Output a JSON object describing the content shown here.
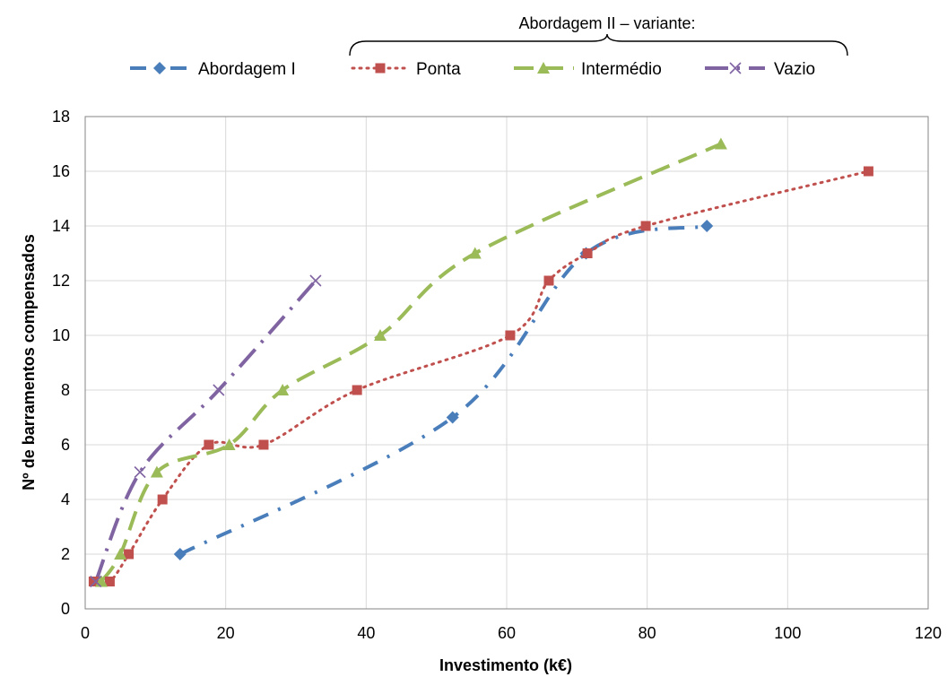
{
  "chart_data": {
    "type": "line",
    "xlabel": "Investimento (k€)",
    "ylabel": "Nº de barramentos  compensados",
    "xlim": [
      0,
      120
    ],
    "ylim": [
      0,
      18
    ],
    "x_ticks": [
      "0",
      "20",
      "40",
      "60",
      "80",
      "100",
      "120"
    ],
    "y_ticks": [
      "0",
      "2",
      "4",
      "6",
      "8",
      "10",
      "12",
      "14",
      "16",
      "18"
    ],
    "grid": true,
    "legend_position": "top",
    "legend_group_title": "Abordagem II – variante:",
    "series": [
      {
        "name": "Abordagem I",
        "color": "#4a7ebb",
        "dash": "dash-dot",
        "marker": "diamond",
        "points": [
          [
            13.5,
            2
          ],
          [
            52.3,
            7
          ],
          [
            71.3,
            13
          ],
          [
            88.5,
            14
          ]
        ]
      },
      {
        "name": "Ponta",
        "color": "#c0504d",
        "dash": "dot",
        "marker": "square",
        "points": [
          [
            1.2,
            1
          ],
          [
            3.5,
            1
          ],
          [
            6.2,
            2
          ],
          [
            11,
            4
          ],
          [
            17.6,
            6
          ],
          [
            25.4,
            6
          ],
          [
            38.7,
            8
          ],
          [
            60.5,
            10
          ],
          [
            66,
            12
          ],
          [
            71.5,
            13
          ],
          [
            79.8,
            14
          ],
          [
            111.5,
            16
          ]
        ]
      },
      {
        "name": "Intermédio",
        "color": "#9bbb59",
        "dash": "long-dash",
        "marker": "triangle",
        "points": [
          [
            2.3,
            1
          ],
          [
            5,
            2
          ],
          [
            10.2,
            5
          ],
          [
            20.5,
            6
          ],
          [
            28.1,
            8
          ],
          [
            42,
            10
          ],
          [
            55.5,
            13
          ],
          [
            90.5,
            17
          ]
        ]
      },
      {
        "name": "Vazio",
        "color": "#8064a2",
        "dash": "long-dash-dot",
        "marker": "x",
        "points": [
          [
            1.5,
            1
          ],
          [
            7.8,
            5
          ],
          [
            19,
            8
          ],
          [
            32.8,
            12
          ]
        ]
      }
    ]
  }
}
